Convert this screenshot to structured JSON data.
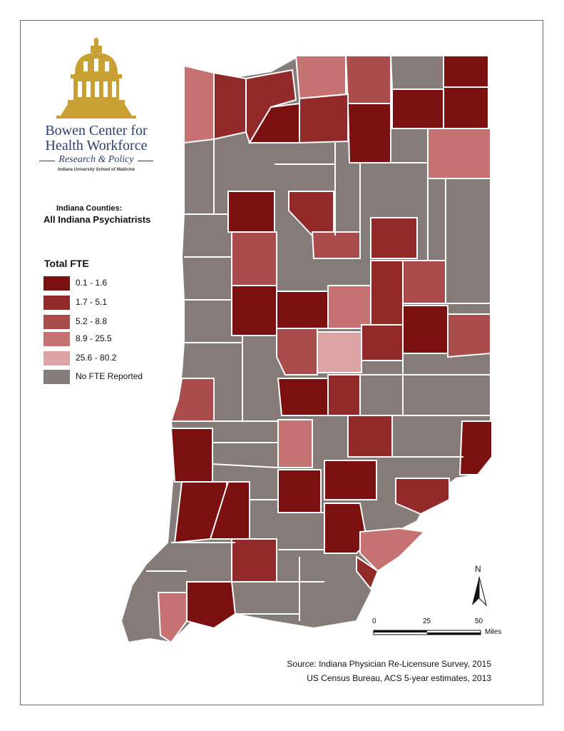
{
  "logo": {
    "line1": "Bowen Center for",
    "line2": "Health Workforce",
    "line3": "Research & Policy",
    "line4": "Indiana University School of Medicine",
    "icon": "capitol-dome-icon",
    "color_gold": "#c9a033",
    "color_navy": "#2b3f6e"
  },
  "title": {
    "line1": "Indiana Counties:",
    "line2": "All Indiana Psychiatrists"
  },
  "legend": {
    "title": "Total FTE",
    "items": [
      {
        "label": "0.1 - 1.6",
        "color": "#7b1010"
      },
      {
        "label": "1.7 - 5.1",
        "color": "#932a2a"
      },
      {
        "label": "5.2 - 8.8",
        "color": "#ab4c4c"
      },
      {
        "label": "8.9 - 25.5",
        "color": "#c67272"
      },
      {
        "label": "25.6 - 80.2",
        "color": "#dba3a3"
      },
      {
        "label": "No FTE Reported",
        "color": "#857c79"
      }
    ]
  },
  "north_arrow": {
    "label": "N"
  },
  "scale_bar": {
    "ticks": [
      "0",
      "25",
      "50"
    ],
    "units": "Miles"
  },
  "source": {
    "line1": "Source: Indiana Physician Re-Licensure Survey, 2015",
    "line2": "US Census Bureau, ACS 5-year estimates, 2013"
  }
}
